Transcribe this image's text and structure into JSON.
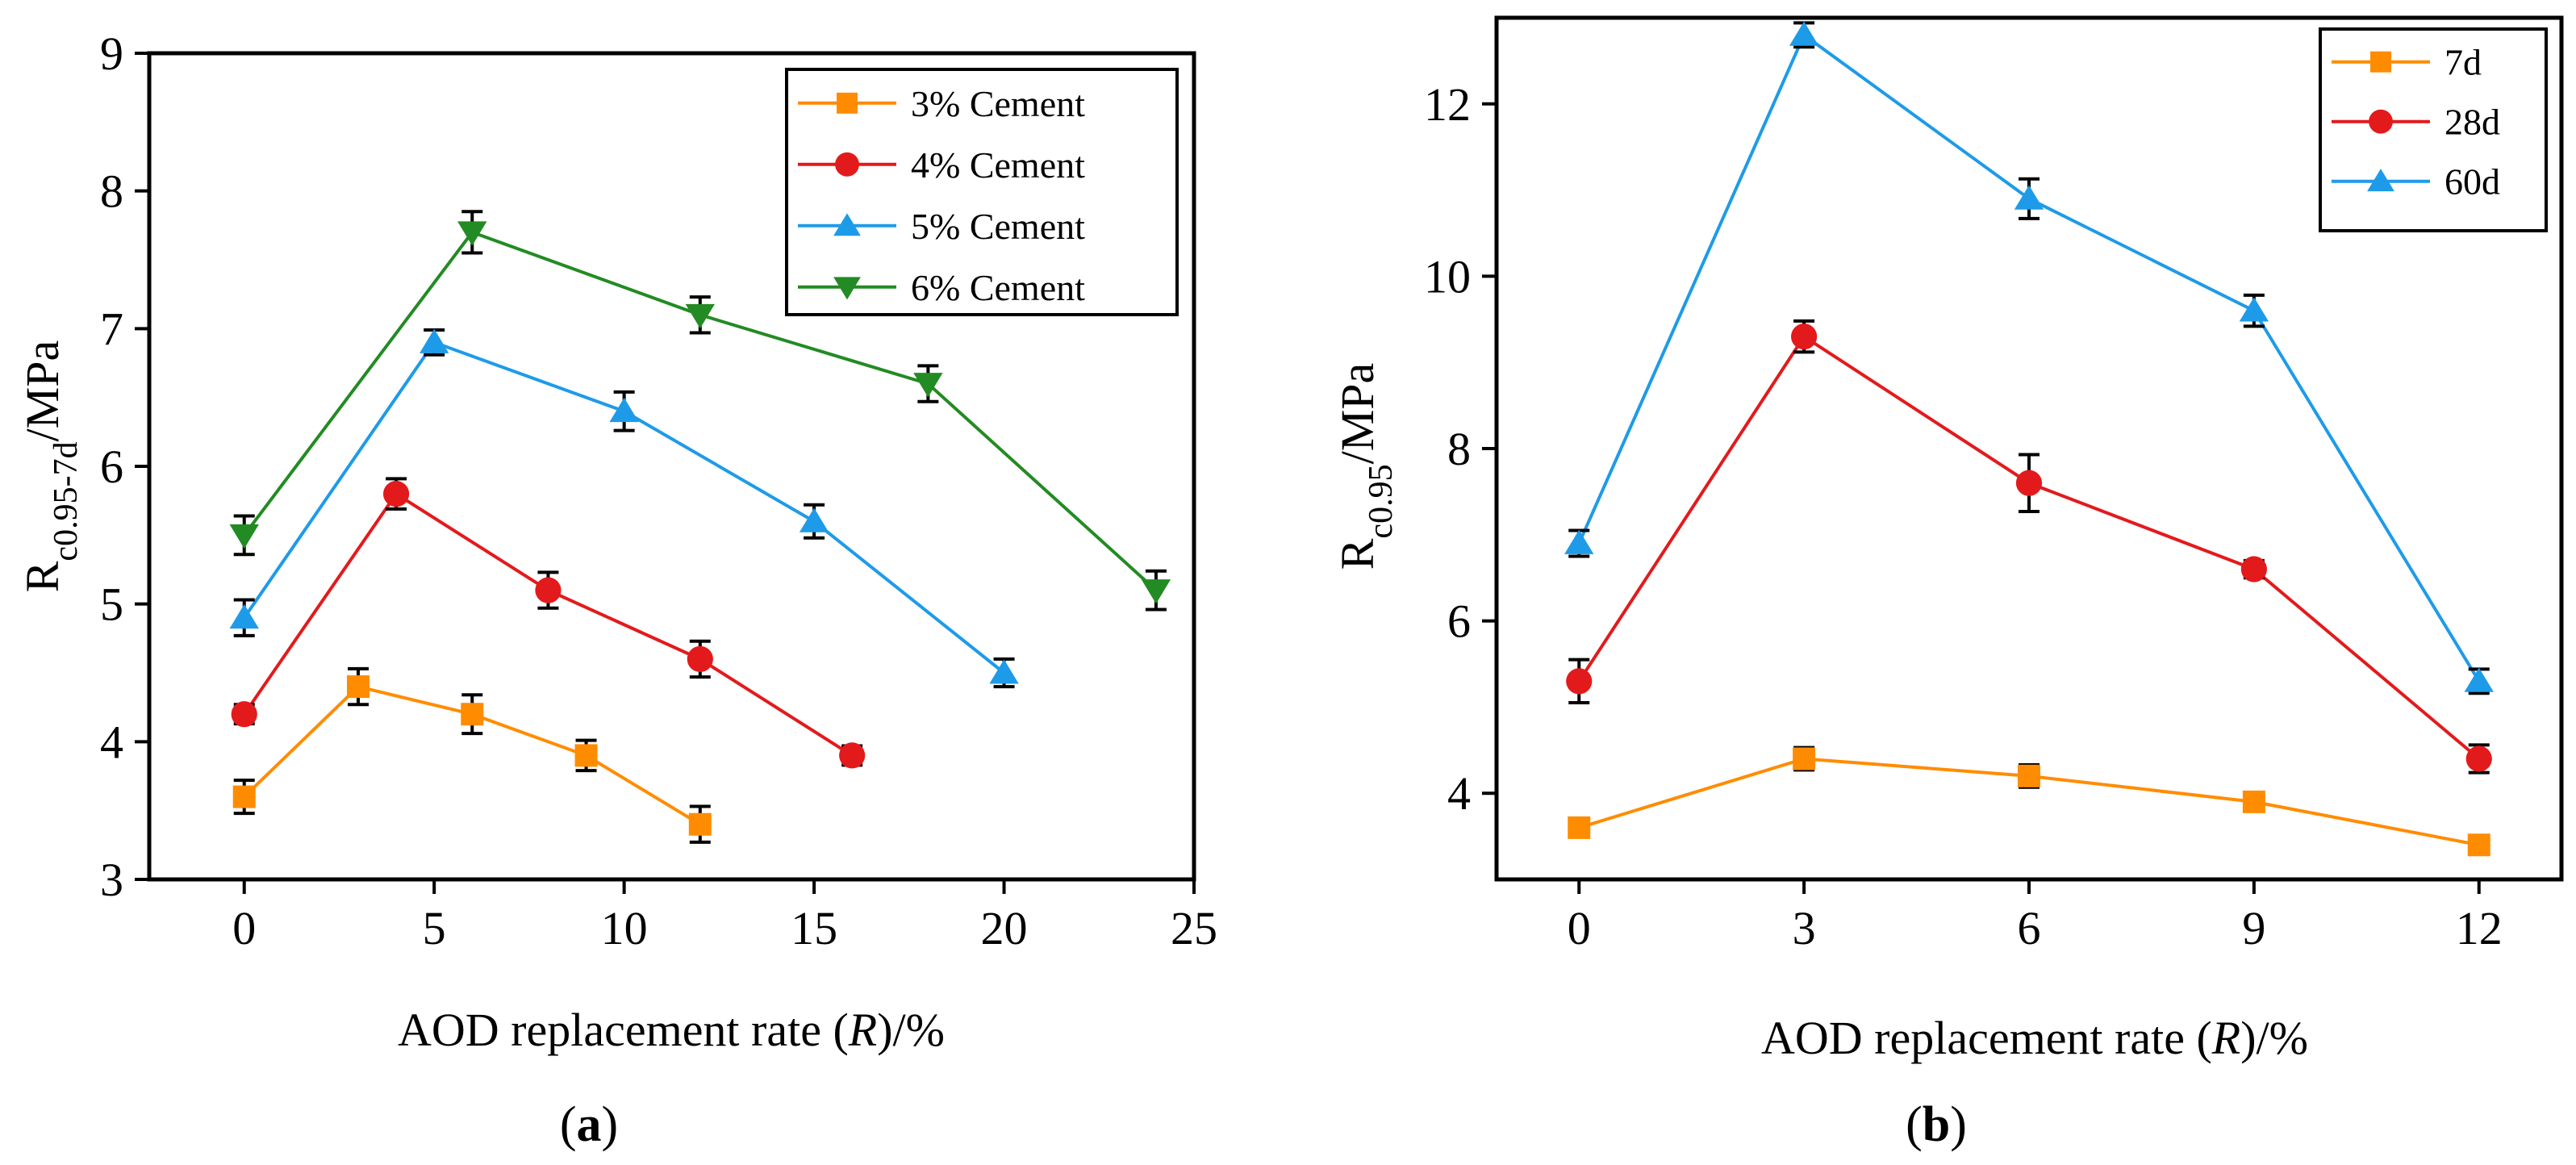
{
  "colors": {
    "orange": "#FF8C00",
    "red": "#E31A1C",
    "blue": "#1E9BE8",
    "green": "#238B23",
    "axis": "#000000"
  },
  "panel_a": {
    "label_open": "(",
    "label_letter": "a",
    "label_close": ")",
    "xlabel_prefix": "AOD replacement rate (",
    "xlabel_var": "R",
    "xlabel_suffix": ")/%",
    "ylabel_main": "R",
    "ylabel_sub": "c0.95-7d",
    "ylabel_unit": "/MPa"
  },
  "panel_b": {
    "label_open": "(",
    "label_letter": "b",
    "label_close": ")",
    "xlabel_prefix": "AOD replacement rate (",
    "xlabel_var": "R",
    "xlabel_suffix": ")/%",
    "ylabel_main": "R",
    "ylabel_sub": "c0.95",
    "ylabel_unit": "/MPa"
  },
  "chart_data": [
    {
      "id": "a",
      "type": "line",
      "xlabel": "AOD replacement rate (R)/%",
      "ylabel": "Rc0.95-7d/MPa",
      "xlim": [
        -2.5,
        25
      ],
      "ylim": [
        3,
        9
      ],
      "xticks": [
        0,
        5,
        10,
        15,
        20,
        25
      ],
      "yticks": [
        3,
        4,
        5,
        6,
        7,
        8,
        9
      ],
      "grid": false,
      "legend_position": "top-right",
      "series": [
        {
          "name": "3% Cement",
          "color": "#FF8C00",
          "marker": "square",
          "x": [
            0,
            3,
            6,
            9,
            12
          ],
          "y": [
            3.6,
            4.4,
            4.2,
            3.9,
            3.4
          ],
          "err": [
            0.12,
            0.13,
            0.14,
            0.11,
            0.13
          ]
        },
        {
          "name": "4% Cement",
          "color": "#E31A1C",
          "marker": "circle",
          "x": [
            0,
            4,
            8,
            12,
            16
          ],
          "y": [
            4.2,
            5.8,
            5.1,
            4.6,
            3.9
          ],
          "err": [
            0.07,
            0.11,
            0.13,
            0.13,
            0.07
          ]
        },
        {
          "name": "5% Cement",
          "color": "#1E9BE8",
          "marker": "triangle-up",
          "x": [
            0,
            5,
            10,
            15,
            20
          ],
          "y": [
            4.9,
            6.9,
            6.4,
            5.6,
            4.5
          ],
          "err": [
            0.13,
            0.09,
            0.14,
            0.12,
            0.1
          ]
        },
        {
          "name": "6% Cement",
          "color": "#238B23",
          "marker": "triangle-down",
          "x": [
            0,
            6,
            12,
            18,
            24
          ],
          "y": [
            5.5,
            7.7,
            7.1,
            6.6,
            5.1
          ],
          "err": [
            0.14,
            0.15,
            0.13,
            0.13,
            0.14
          ]
        }
      ]
    },
    {
      "id": "b",
      "type": "line",
      "xlabel": "AOD replacement rate (R)/%",
      "ylabel": "Rc0.95/MPa",
      "xlim": [
        -1.1,
        13.1
      ],
      "ylim": [
        3,
        13
      ],
      "xticks": [
        0,
        3,
        6,
        9,
        12
      ],
      "yticks": [
        4,
        6,
        8,
        10,
        12
      ],
      "grid": false,
      "legend_position": "top-right",
      "series": [
        {
          "name": "7d",
          "color": "#FF8C00",
          "marker": "square",
          "x": [
            0,
            3,
            6,
            9,
            12
          ],
          "y": [
            3.6,
            4.4,
            4.2,
            3.9,
            3.4
          ],
          "err": [
            0.1,
            0.13,
            0.13,
            0.1,
            0.1
          ]
        },
        {
          "name": "28d",
          "color": "#E31A1C",
          "marker": "circle",
          "x": [
            0,
            3,
            6,
            9,
            12
          ],
          "y": [
            5.3,
            9.3,
            7.6,
            6.6,
            4.4
          ],
          "err": [
            0.25,
            0.18,
            0.33,
            0.1,
            0.16
          ]
        },
        {
          "name": "60d",
          "color": "#1E9BE8",
          "marker": "triangle-up",
          "x": [
            0,
            3,
            6,
            9,
            12
          ],
          "y": [
            6.9,
            12.8,
            10.9,
            9.6,
            5.3
          ],
          "err": [
            0.15,
            0.14,
            0.23,
            0.18,
            0.14
          ]
        }
      ]
    }
  ]
}
